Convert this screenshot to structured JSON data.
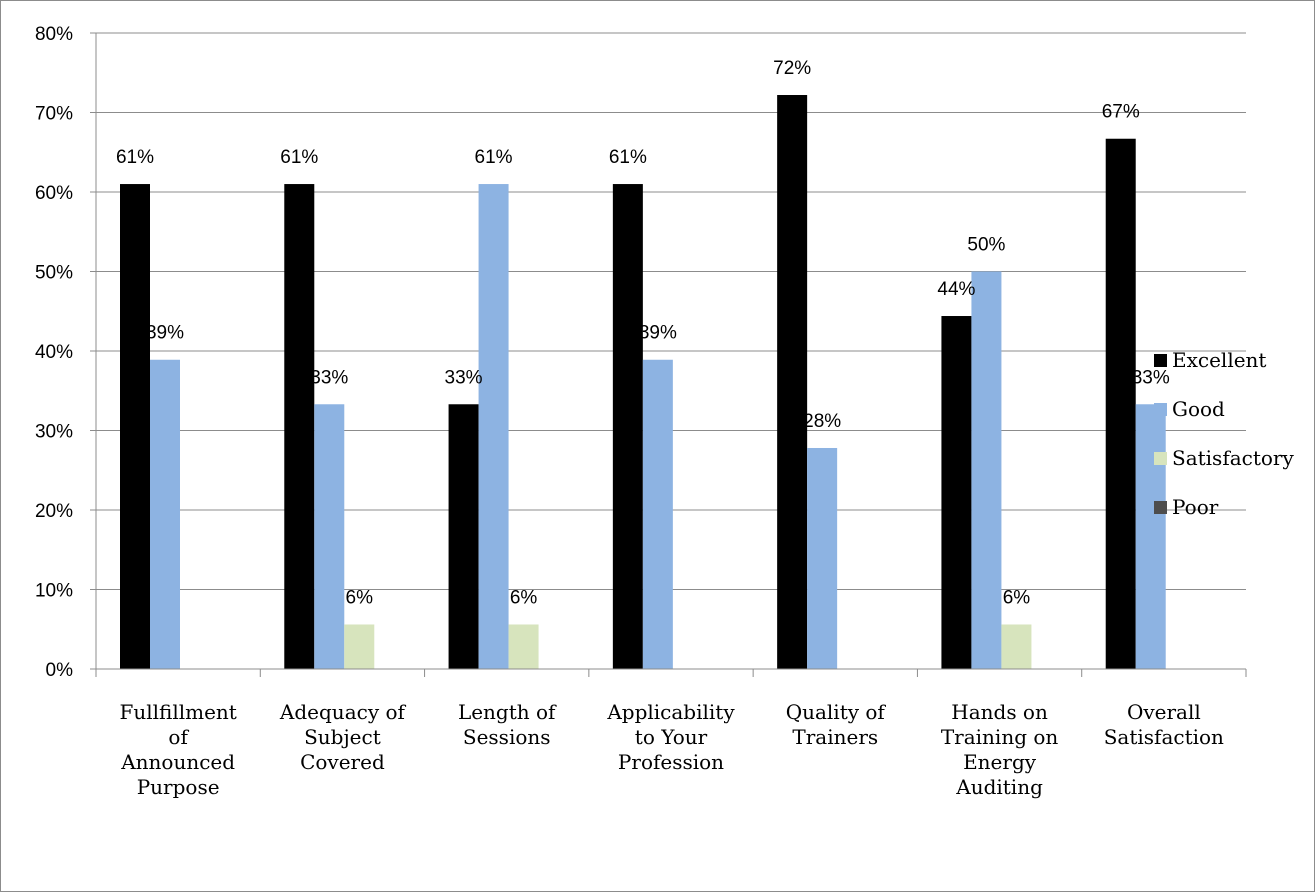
{
  "chart_data": {
    "type": "bar",
    "categories": [
      [
        "Fullfillment",
        "of",
        "Announced",
        "Purpose"
      ],
      [
        "Adequacy of",
        "Subject",
        "Covered"
      ],
      [
        "Length of",
        "Sessions"
      ],
      [
        "Applicability",
        "to Your",
        "Profession"
      ],
      [
        "Quality of",
        "Trainers"
      ],
      [
        "Hands on",
        "Training on",
        "Energy",
        "Auditing"
      ],
      [
        "Overall",
        "Satisfaction"
      ]
    ],
    "series": [
      {
        "name": "Excellent",
        "color": "#000000",
        "values": [
          0.61,
          0.61,
          0.333,
          0.61,
          0.722,
          0.444,
          0.667
        ],
        "labels": [
          "61%",
          "61%",
          "33%",
          "61%",
          "72%",
          "44%",
          "67%"
        ]
      },
      {
        "name": "Good",
        "color": "#8db3e2",
        "values": [
          0.389,
          0.333,
          0.61,
          0.389,
          0.278,
          0.5,
          0.333
        ],
        "labels": [
          "39%",
          "33%",
          "61%",
          "39%",
          "28%",
          "50%",
          "33%"
        ]
      },
      {
        "name": "Satisfactory",
        "color": "#d7e4bd",
        "values": [
          null,
          0.056,
          0.056,
          null,
          null,
          0.056,
          null
        ],
        "labels": [
          "",
          "6%",
          "6%",
          "",
          "",
          "6%",
          ""
        ]
      },
      {
        "name": "Poor",
        "color": "#4d4d4d",
        "values": [
          null,
          null,
          null,
          null,
          null,
          null,
          null
        ],
        "labels": [
          "",
          "",
          "",
          "",
          "",
          "",
          ""
        ]
      }
    ],
    "ylim": [
      0,
      0.8
    ],
    "yticks": [
      0,
      0.1,
      0.2,
      0.3,
      0.4,
      0.5,
      0.6,
      0.7,
      0.8
    ],
    "ytick_labels": [
      "0%",
      "10%",
      "20%",
      "30%",
      "40%",
      "50%",
      "60%",
      "70%",
      "80%"
    ],
    "grid": true,
    "legend_position": "right",
    "title": "",
    "xlabel": "",
    "ylabel": ""
  }
}
